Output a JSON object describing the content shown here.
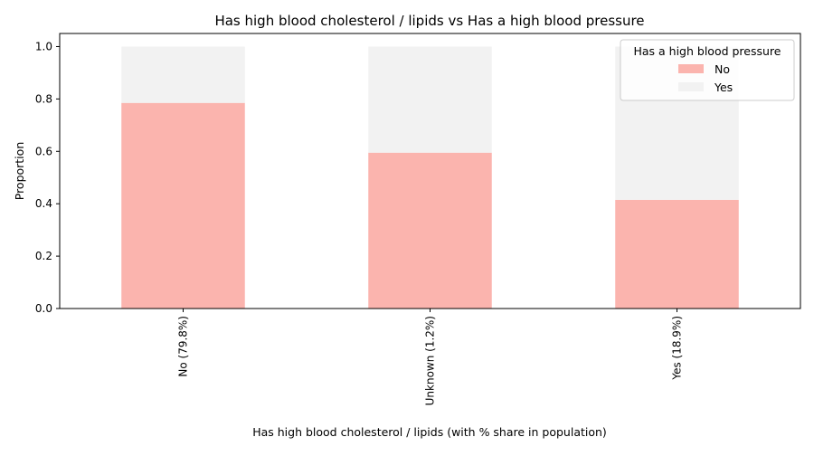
{
  "chart_data": {
    "type": "bar",
    "stacked": true,
    "title": "Has high blood cholesterol / lipids vs Has a high blood pressure",
    "xlabel": "Has high blood cholesterol / lipids (with % share in population)",
    "ylabel": "Proportion",
    "ylim": [
      0,
      1.05
    ],
    "yticks": [
      "0.0",
      "0.2",
      "0.4",
      "0.6",
      "0.8",
      "1.0"
    ],
    "categories": [
      "No (79.8%)",
      "Unknown (1.2%)",
      "Yes (18.9%)"
    ],
    "series": [
      {
        "name": "No",
        "color": "#fbb4ae",
        "values": [
          0.785,
          0.595,
          0.415
        ]
      },
      {
        "name": "Yes",
        "color": "#f2f2f2",
        "values": [
          0.215,
          0.405,
          0.585
        ]
      }
    ],
    "legend": {
      "title": "Has a high blood pressure",
      "position": "top-right"
    },
    "grid": false
  }
}
